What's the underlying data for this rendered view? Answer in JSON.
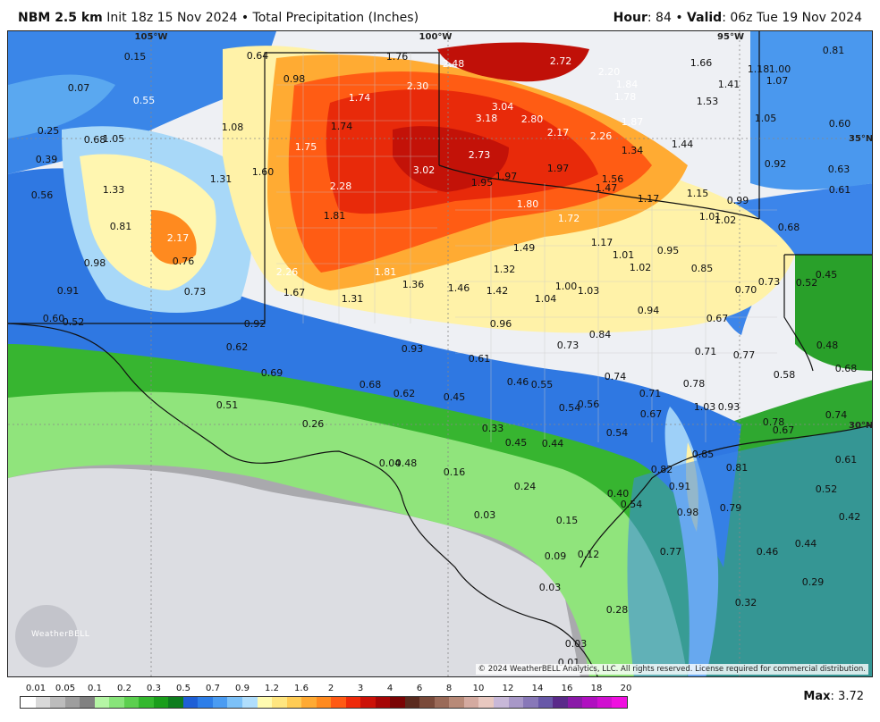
{
  "header": {
    "model": "NBM 2.5 km",
    "init": "Init 18z 15 Nov 2024",
    "bullet": "•",
    "field": "Total Precipitation (Inches)",
    "hour_label": "Hour",
    "hour_value": ": 84 •",
    "valid_label": "Valid",
    "valid_value": ": 06z Tue 19 Nov 2024"
  },
  "map": {
    "longitude_labels": [
      "105°W",
      "100°W",
      "95°W"
    ],
    "latitude_labels": [
      "35°N",
      "30°N"
    ],
    "copyright": "© 2024 WeatherBELL Analytics, LLC. All rights reserved. License required for commercial distribution.",
    "logo_text": "WeatherBELL",
    "values": [
      "0.15",
      "0.64",
      "1.76",
      "2.48",
      "2.72",
      "1.66",
      "0.81",
      "1.18",
      "1.00",
      "0.07",
      "0.98",
      "2.30",
      "2.20",
      "1.84",
      "1.41",
      "1.07",
      "0.55",
      "1.74",
      "3.04",
      "2.80",
      "1.78",
      "1.53",
      "0.25",
      "0.68",
      "1.05",
      "1.08",
      "1.74",
      "3.18",
      "2.17",
      "1.87",
      "1.05",
      "0.60",
      "0.39",
      "1.75",
      "2.73",
      "2.26",
      "1.44",
      "1.34",
      "0.92",
      "0.63",
      "0.56",
      "1.33",
      "1.31",
      "1.60",
      "3.02",
      "1.97",
      "1.97",
      "1.56",
      "0.61",
      "2.28",
      "1.95",
      "1.47",
      "1.17",
      "1.15",
      "0.99",
      "0.81",
      "1.81",
      "1.80",
      "1.72",
      "1.01",
      "1.02",
      "2.17",
      "0.68",
      "1.49",
      "1.17",
      "0.98",
      "0.76",
      "1.01",
      "0.95",
      "2.26",
      "1.81",
      "1.32",
      "1.02",
      "0.85",
      "0.45",
      "0.91",
      "0.73",
      "1.67",
      "1.31",
      "1.36",
      "1.46",
      "1.42",
      "1.00",
      "1.03",
      "0.70",
      "0.73",
      "0.52",
      "1.04",
      "0.94",
      "0.60",
      "0.52",
      "0.96",
      "0.92",
      "0.84",
      "0.67",
      "0.48",
      "0.62",
      "0.93",
      "0.73",
      "0.71",
      "0.77",
      "0.61",
      "0.69",
      "0.68",
      "0.62",
      "0.46",
      "0.55",
      "0.74",
      "0.58",
      "0.68",
      "0.45",
      "0.71",
      "0.78",
      "0.51",
      "0.54",
      "0.56",
      "1.03",
      "0.93",
      "0.67",
      "0.74",
      "0.33",
      "0.78",
      "0.67",
      "0.26",
      "0.45",
      "0.44",
      "0.54",
      "0.85",
      "0.82",
      "0.04",
      "0.48",
      "0.16",
      "0.81",
      "0.61",
      "0.24",
      "0.91",
      "0.52",
      "0.40",
      "0.54",
      "0.98",
      "0.79",
      "0.42",
      "0.03",
      "0.15",
      "0.44",
      "0.77",
      "0.09",
      "0.12",
      "0.46",
      "0.03",
      "0.29",
      "0.28",
      "0.32",
      "0.03",
      "0.01"
    ]
  },
  "legend": {
    "ticks": [
      "0.01",
      "0.05",
      "0.1",
      "0.2",
      "0.3",
      "0.5",
      "0.7",
      "0.9",
      "1.2",
      "1.6",
      "2",
      "3",
      "4",
      "6",
      "8",
      "10",
      "12",
      "14",
      "16",
      "18",
      "20"
    ],
    "colors": [
      "#ffffff",
      "#d9d9d9",
      "#bcbcbc",
      "#9e9e9e",
      "#818181",
      "#b5f5a5",
      "#88e47a",
      "#5ccf4f",
      "#34b82e",
      "#1a9e1b",
      "#0e7d1e",
      "#1e5fd6",
      "#2d7ee8",
      "#4a9cf2",
      "#7cc1f8",
      "#b0defc",
      "#fffbb0",
      "#ffe680",
      "#ffcc55",
      "#ffaa33",
      "#ff8a1f",
      "#ff5a14",
      "#ee2a0a",
      "#cc1208",
      "#a60606",
      "#7a0404",
      "#5a2a1e",
      "#7a4a3a",
      "#9a6a58",
      "#b88a78",
      "#d4aaa0",
      "#e8c8c0",
      "#c8b8d8",
      "#a898c8",
      "#8878b8",
      "#6858a8",
      "#5a2a8a",
      "#8a1aa8",
      "#b010c0",
      "#d010d0",
      "#f010e0"
    ],
    "max_label": "Max",
    "max_value": ": 3.72"
  }
}
